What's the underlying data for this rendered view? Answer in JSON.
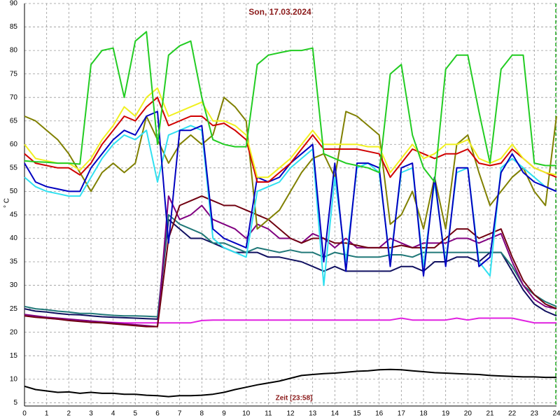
{
  "chart_data": {
    "type": "line",
    "title": "Son, 17.03.2024",
    "y_label": "° C",
    "annotation": "Zeit [23:58]",
    "x": [
      0,
      0.5,
      1,
      1.5,
      2,
      2.5,
      3,
      3.5,
      4,
      4.5,
      5,
      5.5,
      6,
      6.5,
      7,
      7.5,
      8,
      8.5,
      9,
      9.5,
      10,
      10.5,
      11,
      11.5,
      12,
      12.5,
      13,
      13.5,
      14,
      14.5,
      15,
      15.5,
      16,
      16.5,
      17,
      17.5,
      18,
      18.5,
      19,
      19.5,
      20,
      20.5,
      21,
      21.5,
      22,
      22.5,
      23,
      23.5,
      24
    ],
    "xlim": [
      0,
      24
    ],
    "xticks": [
      0,
      1,
      2,
      3,
      4,
      5,
      6,
      7,
      8,
      9,
      10,
      11,
      12,
      13,
      14,
      15,
      16,
      17,
      18,
      19,
      20,
      21,
      22,
      23,
      24
    ],
    "ylim": [
      4.3,
      90
    ],
    "yticks": [
      5,
      10,
      15,
      20,
      25,
      30,
      35,
      40,
      45,
      50,
      55,
      60,
      65,
      70,
      75,
      80,
      85,
      90
    ],
    "grid": true,
    "series": [
      {
        "color": "#000000",
        "values": [
          8.5,
          7.8,
          7.5,
          7.2,
          7.3,
          7,
          7.2,
          7,
          7,
          6.8,
          6.8,
          6.6,
          6.5,
          6.3,
          6.5,
          6.5,
          6.6,
          6.8,
          7.2,
          7.8,
          8.3,
          8.8,
          9.2,
          9.6,
          10.2,
          10.8,
          11,
          11.2,
          11.3,
          11.5,
          11.7,
          11.8,
          12,
          12.1,
          12,
          11.8,
          11.6,
          11.4,
          11.3,
          11.2,
          11.1,
          11,
          10.8,
          10.7,
          10.6,
          10.5,
          10.5,
          10.4,
          10.4
        ]
      },
      {
        "color": "#e020e0",
        "values": [
          23.5,
          23.3,
          23,
          22.8,
          22.6,
          22.4,
          22.3,
          22.2,
          22.1,
          22,
          22,
          22,
          22,
          22,
          22,
          22,
          22.5,
          22.6,
          22.6,
          22.6,
          22.6,
          22.6,
          22.6,
          22.6,
          22.6,
          22.6,
          22.6,
          22.6,
          22.6,
          22.6,
          22.6,
          22.6,
          22.6,
          22.6,
          23,
          22.6,
          22.6,
          22.6,
          22.6,
          23,
          22.6,
          23,
          23,
          23,
          23,
          22.5,
          22,
          22,
          22
        ]
      },
      {
        "color": "#101060",
        "values": [
          25,
          24.5,
          24.3,
          24,
          23.8,
          23.7,
          23.5,
          23.3,
          23.2,
          23.1,
          23,
          22.9,
          22.8,
          44,
          42,
          40,
          40,
          39,
          38,
          37,
          37,
          37,
          36,
          36,
          35.5,
          35,
          34,
          33,
          34,
          33,
          33,
          33,
          33,
          33,
          34,
          34,
          33,
          35,
          35,
          36,
          36,
          35,
          37,
          37,
          33,
          29,
          26,
          24.5,
          23.5
        ]
      },
      {
        "color": "#207878",
        "values": [
          25.5,
          25,
          24.8,
          24.5,
          24.3,
          24,
          24,
          23.8,
          23.6,
          23.5,
          23.5,
          23.4,
          23.3,
          45,
          43,
          42,
          41,
          39,
          39,
          38,
          37,
          38,
          37.5,
          37,
          37.5,
          37,
          37,
          36,
          37,
          36.5,
          36,
          36,
          36,
          36.5,
          36.5,
          36,
          37,
          37,
          37,
          37,
          37,
          37,
          37,
          37,
          34,
          30,
          28,
          26.5,
          25.5
        ]
      },
      {
        "color": "#800080",
        "values": [
          23.8,
          23.5,
          23.2,
          23,
          22.8,
          22.6,
          22.4,
          22.2,
          22,
          21.8,
          21.6,
          21.4,
          21.2,
          49,
          44,
          45,
          47,
          44,
          43,
          42,
          40,
          43,
          42,
          40,
          40,
          39,
          41,
          40,
          38,
          40,
          38,
          38,
          38,
          40,
          39,
          38,
          39,
          39,
          39,
          40,
          40,
          39,
          40,
          41,
          35,
          30,
          27,
          25.5,
          25
        ]
      },
      {
        "color": "#700010",
        "values": [
          23.5,
          23.2,
          23,
          22.8,
          22.5,
          22.3,
          22.1,
          22,
          21.8,
          21.6,
          21.4,
          21.2,
          21.2,
          40,
          47,
          48,
          49,
          48,
          47,
          47,
          46,
          45,
          44,
          42,
          40,
          39,
          40,
          40,
          39,
          39,
          38.5,
          38,
          38,
          38,
          38.5,
          38,
          38,
          38,
          40,
          42,
          42,
          40,
          41,
          42,
          36,
          31,
          28,
          26,
          25
        ]
      },
      {
        "color": "#808000",
        "values": [
          66,
          65,
          63,
          61,
          58,
          54,
          50,
          54,
          56,
          54,
          56,
          66,
          61,
          56,
          60,
          62,
          60,
          62,
          70,
          68,
          65,
          42,
          44,
          46,
          50,
          54,
          57,
          58,
          53,
          67,
          66,
          64,
          62,
          43,
          45,
          50,
          42,
          53,
          42,
          60,
          62,
          54,
          47,
          50,
          53,
          55,
          50,
          47,
          66
        ]
      },
      {
        "color": "#30e0f0",
        "values": [
          53,
          51,
          50,
          49.5,
          49,
          49,
          53,
          57,
          60,
          62,
          61,
          63,
          52,
          62,
          63,
          64,
          63,
          40,
          38,
          37,
          36,
          50,
          51,
          52,
          55,
          57,
          59,
          30,
          53,
          35,
          55,
          56,
          54,
          35,
          54,
          55,
          34,
          52,
          35,
          54,
          55,
          35,
          32,
          55,
          57,
          55,
          53,
          51,
          50
        ]
      },
      {
        "color": "#0000c0",
        "values": [
          56,
          52,
          51,
          50.5,
          50,
          50,
          55,
          58,
          61,
          63,
          62,
          66,
          67,
          39,
          63,
          63,
          64,
          42,
          40,
          39,
          38,
          53,
          52,
          53,
          56,
          58,
          60,
          35,
          56,
          33,
          56,
          56,
          55,
          34,
          55,
          56,
          32,
          53,
          34,
          55,
          55,
          34,
          36,
          54,
          58,
          54,
          52,
          51,
          50
        ]
      },
      {
        "color": "#d00000",
        "values": [
          58,
          56,
          55.5,
          55,
          55,
          53.5,
          56,
          60,
          63,
          66,
          65,
          68,
          70,
          64,
          65,
          66,
          66,
          64,
          64.5,
          63,
          61,
          52,
          52,
          54,
          56,
          59,
          62,
          59,
          59,
          59,
          59,
          58.5,
          58,
          53,
          56,
          59,
          58,
          57,
          58,
          58,
          59,
          56,
          55.5,
          56,
          59,
          57,
          55,
          54,
          53
        ]
      },
      {
        "color": "#f0f020",
        "values": [
          60,
          57,
          56.5,
          56,
          56,
          54.5,
          57,
          61,
          64,
          68,
          66,
          70,
          72,
          66,
          67,
          68,
          69,
          65,
          65,
          64,
          62,
          53,
          53,
          55,
          57,
          60,
          63,
          60,
          60,
          60,
          60,
          59.5,
          59.5,
          54,
          57,
          60,
          57,
          58,
          60,
          60,
          61,
          57,
          56,
          57,
          60,
          57,
          55,
          54,
          53.5
        ]
      },
      {
        "color": "#22cc22",
        "values": [
          56.5,
          56.3,
          56.2,
          56,
          56,
          55.8,
          77,
          80,
          80.5,
          70,
          82,
          84,
          60,
          79,
          81,
          82,
          70,
          61,
          60,
          59.5,
          59.5,
          77,
          79,
          79.5,
          80,
          80,
          80.5,
          58,
          57,
          56,
          55.5,
          55,
          54,
          75,
          77,
          62,
          55,
          52,
          76,
          79,
          79,
          67,
          56,
          76,
          79,
          79,
          56,
          55.5,
          55.5
        ]
      }
    ]
  }
}
